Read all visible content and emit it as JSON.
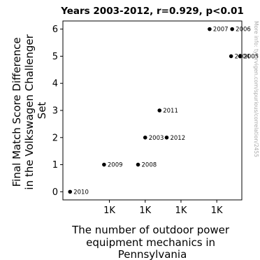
{
  "chart_data": {
    "type": "scatter",
    "title": "Years 2003-2012, r=0.929, p<0.01",
    "xlabel": [
      "The number of outdoor power",
      "equipment mechanics in",
      "Pennsylvania"
    ],
    "ylabel": [
      "Final Match Score Difference",
      "in the Volkswagen Challenger",
      "Set"
    ],
    "side_note": "More info: tylervigen.com/spurious/correlation/2455",
    "x_ticks": [
      {
        "value": 1000,
        "label": "1K"
      },
      {
        "value": 1100,
        "label": "1K"
      },
      {
        "value": 1200,
        "label": "1K"
      },
      {
        "value": 1300,
        "label": "1K"
      }
    ],
    "y_ticks": [
      0,
      1,
      2,
      3,
      4,
      5,
      6
    ],
    "xlim": [
      870,
      1370
    ],
    "ylim": [
      -0.3,
      6.3
    ],
    "grid": false,
    "points": [
      {
        "label": "2003",
        "x": 1100,
        "y": 2
      },
      {
        "label": "2004",
        "x": 1340,
        "y": 5
      },
      {
        "label": "2005",
        "x": 1365,
        "y": 5
      },
      {
        "label": "2006",
        "x": 1343,
        "y": 6
      },
      {
        "label": "2007",
        "x": 1280,
        "y": 6
      },
      {
        "label": "2008",
        "x": 1080,
        "y": 1
      },
      {
        "label": "2009",
        "x": 985,
        "y": 1
      },
      {
        "label": "2010",
        "x": 890,
        "y": 0
      },
      {
        "label": "2011",
        "x": 1140,
        "y": 3
      },
      {
        "label": "2012",
        "x": 1160,
        "y": 2
      }
    ],
    "point_color": "#000000"
  }
}
